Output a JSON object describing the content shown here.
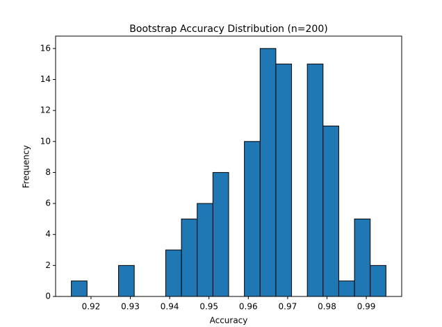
{
  "chart_data": {
    "type": "histogram",
    "title": "Bootstrap Accuracy Distribution (n=200)",
    "x_label": "Accuracy",
    "y_label": "Frequency",
    "bins": [
      0.915,
      0.919,
      0.923,
      0.927,
      0.931,
      0.935,
      0.939,
      0.943,
      0.947,
      0.951,
      0.955,
      0.959,
      0.963,
      0.967,
      0.971,
      0.975,
      0.979,
      0.983,
      0.987,
      0.991,
      0.995
    ],
    "values": [
      1,
      0,
      0,
      2,
      0,
      0,
      3,
      5,
      6,
      8,
      0,
      10,
      16,
      15,
      0,
      15,
      11,
      1,
      5,
      2
    ],
    "color": "#1f77b4",
    "edgecolor": "#000000",
    "xlim": [
      0.911,
      0.999
    ],
    "xticks": [
      0.92,
      0.93,
      0.94,
      0.95,
      0.96,
      0.97,
      0.98,
      0.99
    ],
    "ylim": [
      0,
      16.8
    ],
    "yticks": [
      0,
      2,
      4,
      6,
      8,
      10,
      12,
      14,
      16
    ],
    "grid": false
  }
}
